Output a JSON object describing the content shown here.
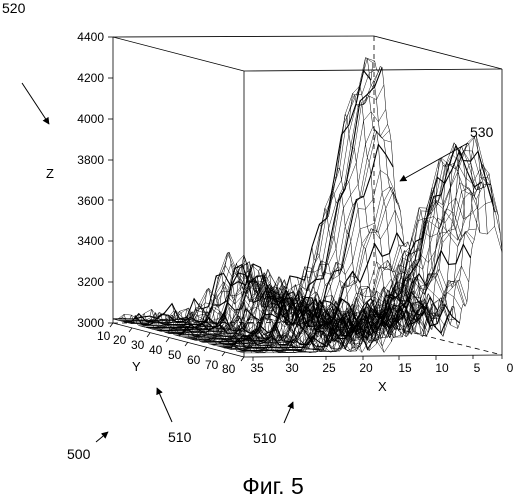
{
  "figure": {
    "caption": "Фиг. 5",
    "refs": {
      "r520": "520",
      "r530": "530",
      "r510a": "510",
      "r510b": "510",
      "r500": "500"
    },
    "axes": {
      "z_label": "Z",
      "y_label": "Y",
      "x_label": "X",
      "z_ticks": [
        "3000",
        "3200",
        "3400",
        "3600",
        "3800",
        "4000",
        "4200",
        "4400"
      ],
      "y_ticks": [
        "10",
        "20",
        "30",
        "40",
        "50",
        "60",
        "70",
        "80"
      ],
      "x_ticks": [
        "35",
        "30",
        "25",
        "20",
        "15",
        "10",
        "5",
        "0"
      ]
    }
  },
  "chart_data": {
    "type": "surface",
    "xlabel": "X",
    "ylabel": "Y",
    "zlabel": "Z",
    "xlim": [
      0,
      35
    ],
    "ylim": [
      10,
      80
    ],
    "zlim": [
      3000,
      4400
    ]
  },
  "colors": {
    "line": "#000000",
    "background": "#ffffff"
  }
}
